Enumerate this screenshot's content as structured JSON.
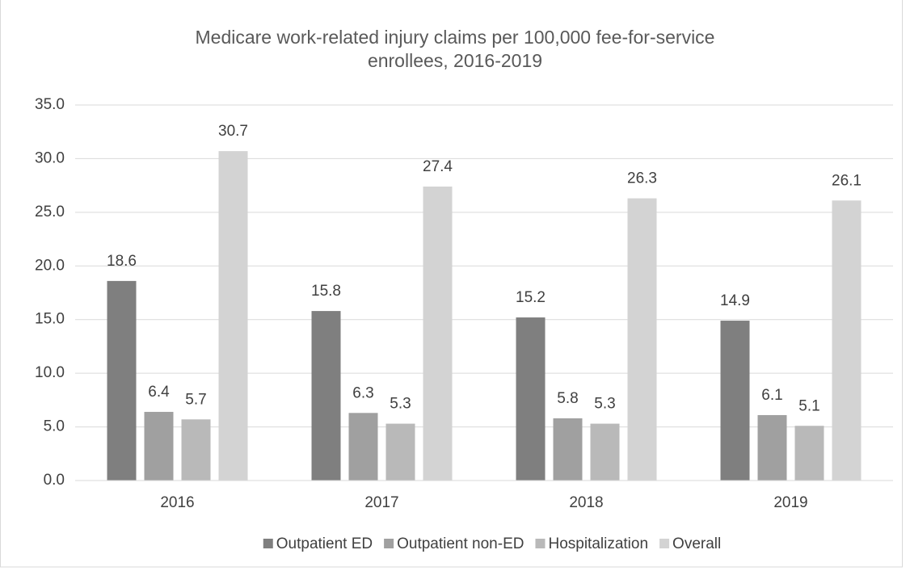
{
  "chart_data": {
    "type": "bar",
    "title": "Medicare work-related injury claims per 100,000 fee-for-service enrollees, 2016-2019",
    "categories": [
      "2016",
      "2017",
      "2018",
      "2019"
    ],
    "series": [
      {
        "name": "Outpatient ED",
        "color": "#7f7f7f",
        "values": [
          18.6,
          15.8,
          15.2,
          14.9
        ]
      },
      {
        "name": "Outpatient non-ED",
        "color": "#a0a0a0",
        "values": [
          6.4,
          6.3,
          5.8,
          6.1
        ]
      },
      {
        "name": "Hospitalization",
        "color": "#b9b9b9",
        "values": [
          5.7,
          5.3,
          5.3,
          5.1
        ]
      },
      {
        "name": "Overall",
        "color": "#d3d3d3",
        "values": [
          30.7,
          27.4,
          26.3,
          26.1
        ]
      }
    ],
    "ylim": [
      0,
      35
    ],
    "yticks": [
      {
        "value": 0,
        "label": "0.0"
      },
      {
        "value": 5,
        "label": "5.0"
      },
      {
        "value": 10,
        "label": "10.0"
      },
      {
        "value": 15,
        "label": "15.0"
      },
      {
        "value": 20,
        "label": "20.0"
      },
      {
        "value": 25,
        "label": "25.0"
      },
      {
        "value": 30,
        "label": "30.0"
      },
      {
        "value": 35,
        "label": "35.0"
      }
    ],
    "grid": true,
    "legend": "bottom"
  }
}
